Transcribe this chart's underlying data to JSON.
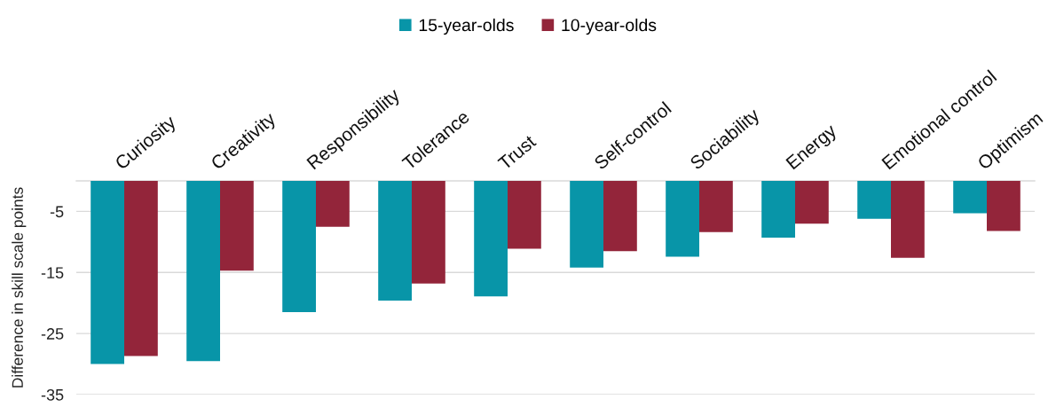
{
  "chart_data": {
    "type": "bar",
    "categories": [
      "Curiosity",
      "Creativity",
      "Responsibility",
      "Tolerance",
      "Trust",
      "Self-control",
      "Sociability",
      "Energy",
      "Emotional control",
      "Optimism"
    ],
    "series": [
      {
        "name": "15-year-olds",
        "color": "#0895a8",
        "values": [
          -30.0,
          -29.5,
          -21.5,
          -19.6,
          -18.9,
          -14.2,
          -12.4,
          -9.3,
          -6.2,
          -5.3
        ]
      },
      {
        "name": "10-year-olds",
        "color": "#93253a",
        "values": [
          -28.7,
          -14.7,
          -7.5,
          -16.8,
          -11.1,
          -11.5,
          -8.4,
          -7.0,
          -12.6,
          -8.2
        ]
      }
    ],
    "ylabel": "Difference in skill scale points",
    "ylim": [
      -35,
      0
    ],
    "yticks": [
      -5,
      -15,
      -25,
      -35
    ],
    "grid": "y",
    "legend": "top"
  }
}
